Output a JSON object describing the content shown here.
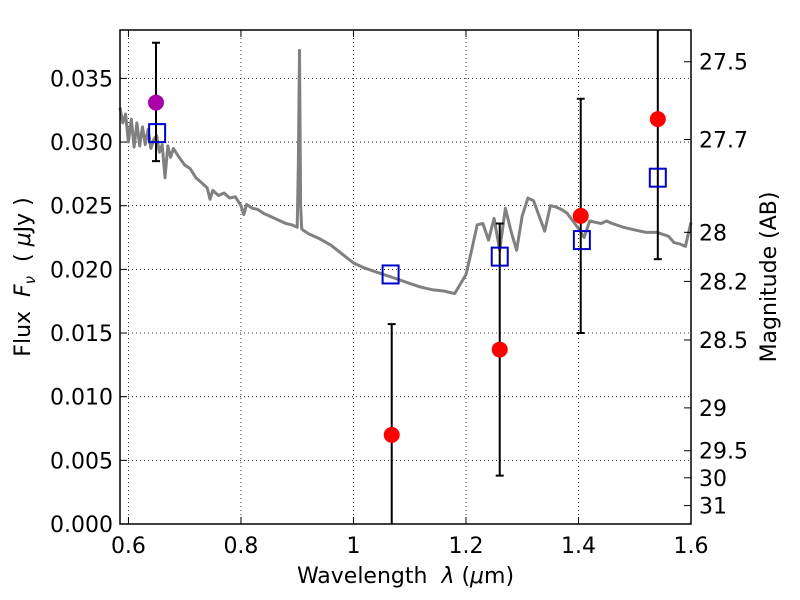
{
  "chart_data": {
    "type": "scatter",
    "xlabel_parts": [
      "Wavelength  ",
      "λ",
      " (",
      "μ",
      "m)"
    ],
    "ylabel_parts": [
      "Flux  ",
      "F",
      "ν",
      "  ( ",
      "μ",
      "Jy )"
    ],
    "y2label": "Magnitude (AB)",
    "xlim": [
      0.585,
      1.6
    ],
    "ylim": [
      0.0,
      0.0388
    ],
    "grid": true,
    "x_ticks": [
      0.6,
      0.8,
      1.0,
      1.2,
      1.4,
      1.6
    ],
    "x_tick_labels": [
      "0.6",
      "0.8",
      "1",
      "1.2",
      "1.4",
      "1.6"
    ],
    "y_ticks": [
      0.0,
      0.005,
      0.01,
      0.015,
      0.02,
      0.025,
      0.03,
      0.035
    ],
    "y_tick_labels": [
      "0.000",
      "0.005",
      "0.010",
      "0.015",
      "0.020",
      "0.025",
      "0.030",
      "0.035"
    ],
    "right_ticks": [
      {
        "label": "27.5",
        "mag": 27.5
      },
      {
        "label": "27.7",
        "mag": 27.7
      },
      {
        "label": "28",
        "mag": 28.0
      },
      {
        "label": "28.2",
        "mag": 28.2
      },
      {
        "label": "28.5",
        "mag": 28.5
      },
      {
        "label": "29",
        "mag": 29.0
      },
      {
        "label": "29.5",
        "mag": 29.5
      },
      {
        "label": "30",
        "mag": 30.0
      },
      {
        "label": "31",
        "mag": 31.0
      }
    ],
    "colors": {
      "template": "#808080",
      "observed": "#ff0000",
      "observed_special": "#aa00aa",
      "model_box": "#0000cc",
      "errorbar": "#000000"
    },
    "template_spectrum": {
      "x": [
        0.585,
        0.59,
        0.595,
        0.6,
        0.605,
        0.61,
        0.615,
        0.62,
        0.625,
        0.63,
        0.635,
        0.64,
        0.645,
        0.65,
        0.655,
        0.66,
        0.665,
        0.67,
        0.675,
        0.68,
        0.69,
        0.7,
        0.71,
        0.72,
        0.73,
        0.74,
        0.745,
        0.75,
        0.76,
        0.77,
        0.78,
        0.79,
        0.8,
        0.805,
        0.81,
        0.82,
        0.83,
        0.84,
        0.85,
        0.86,
        0.87,
        0.88,
        0.89,
        0.9,
        0.902,
        0.904,
        0.906,
        0.908,
        0.91,
        0.92,
        0.94,
        0.96,
        0.98,
        1.0,
        1.02,
        1.04,
        1.06,
        1.08,
        1.1,
        1.12,
        1.14,
        1.16,
        1.18,
        1.2,
        1.21,
        1.22,
        1.23,
        1.24,
        1.25,
        1.26,
        1.27,
        1.28,
        1.29,
        1.3,
        1.31,
        1.32,
        1.33,
        1.34,
        1.35,
        1.36,
        1.37,
        1.38,
        1.39,
        1.4,
        1.41,
        1.42,
        1.43,
        1.44,
        1.45,
        1.46,
        1.48,
        1.5,
        1.52,
        1.54,
        1.56,
        1.57,
        1.58,
        1.59,
        1.6
      ],
      "y": [
        0.0327,
        0.0315,
        0.0322,
        0.03,
        0.0318,
        0.0296,
        0.0315,
        0.0297,
        0.0312,
        0.0298,
        0.031,
        0.0295,
        0.0302,
        0.0305,
        0.0292,
        0.0298,
        0.0272,
        0.0297,
        0.0288,
        0.0295,
        0.0288,
        0.0282,
        0.0279,
        0.0272,
        0.0268,
        0.0264,
        0.0255,
        0.0262,
        0.0258,
        0.026,
        0.0256,
        0.0257,
        0.025,
        0.0243,
        0.0251,
        0.0248,
        0.0247,
        0.0244,
        0.0242,
        0.024,
        0.0238,
        0.0236,
        0.0235,
        0.0233,
        0.028,
        0.0372,
        0.025,
        0.0232,
        0.0231,
        0.0228,
        0.0224,
        0.0219,
        0.0212,
        0.0205,
        0.0201,
        0.0198,
        0.0195,
        0.0192,
        0.0189,
        0.0186,
        0.0184,
        0.0183,
        0.0181,
        0.0196,
        0.0215,
        0.0235,
        0.0236,
        0.0223,
        0.024,
        0.0215,
        0.0248,
        0.023,
        0.0215,
        0.0242,
        0.0256,
        0.0254,
        0.0242,
        0.023,
        0.025,
        0.0249,
        0.0247,
        0.0244,
        0.0238,
        0.0232,
        0.0225,
        0.0238,
        0.0237,
        0.0236,
        0.0238,
        0.0236,
        0.0233,
        0.0231,
        0.0229,
        0.0229,
        0.0226,
        0.0221,
        0.022,
        0.0218,
        0.0237
      ]
    },
    "observed": [
      {
        "x": 0.649,
        "y": 0.0331,
        "err_low": 0.0285,
        "err_high": 0.0378,
        "color": "observed_special"
      },
      {
        "x": 1.068,
        "y": 0.007,
        "err_low": 0.0,
        "err_high": 0.0157,
        "color": "observed"
      },
      {
        "x": 1.26,
        "y": 0.0137,
        "err_low": 0.0038,
        "err_high": 0.0236,
        "color": "observed"
      },
      {
        "x": 1.404,
        "y": 0.0242,
        "err_low": 0.015,
        "err_high": 0.0334,
        "color": "observed"
      },
      {
        "x": 1.541,
        "y": 0.0318,
        "err_low": 0.0208,
        "err_high": 0.04,
        "color": "observed"
      }
    ],
    "model_boxes": [
      {
        "x": 0.651,
        "y": 0.0307
      },
      {
        "x": 1.066,
        "y": 0.0196
      },
      {
        "x": 1.26,
        "y": 0.021
      },
      {
        "x": 1.406,
        "y": 0.0223
      },
      {
        "x": 1.541,
        "y": 0.0272
      }
    ]
  }
}
